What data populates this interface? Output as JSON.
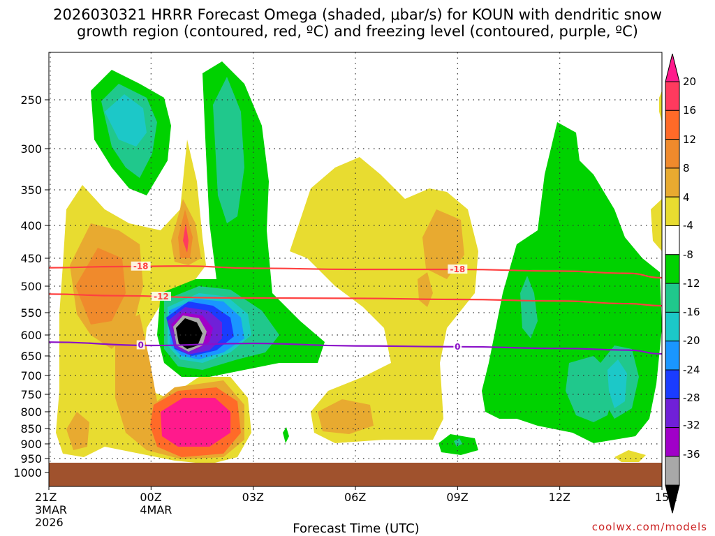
{
  "chart_data": {
    "type": "heatmap",
    "title_line1": "2026030321 HRRR Forecast Omega (shaded, μbar/s) for KOUN with dendritic snow",
    "title_line2": "growth region (contoured, red, ºC) and freezing level (contoured, purple, ºC)",
    "xlabel": "Forecast Time (UTC)",
    "credit": "coolwx.com/models",
    "x_ticks": [
      {
        "hour": 0,
        "label": "21Z",
        "sub1": "3MAR",
        "sub2": "2026"
      },
      {
        "hour": 3,
        "label": "00Z",
        "sub1": "4MAR",
        "sub2": ""
      },
      {
        "hour": 6,
        "label": "03Z",
        "sub1": "",
        "sub2": ""
      },
      {
        "hour": 9,
        "label": "06Z",
        "sub1": "",
        "sub2": ""
      },
      {
        "hour": 12,
        "label": "09Z",
        "sub1": "",
        "sub2": ""
      },
      {
        "hour": 15,
        "label": "12Z",
        "sub1": "",
        "sub2": ""
      },
      {
        "hour": 18,
        "label": "15Z",
        "sub1": "",
        "sub2": ""
      }
    ],
    "y_ticks": [
      "250",
      "300",
      "350",
      "400",
      "450",
      "500",
      "550",
      "600",
      "650",
      "700",
      "750",
      "800",
      "850",
      "900",
      "950",
      "1000"
    ],
    "y_values": [
      250,
      300,
      350,
      400,
      450,
      500,
      550,
      600,
      650,
      700,
      750,
      800,
      850,
      900,
      950,
      1000
    ],
    "ylim": [
      200,
      1030
    ],
    "xlim": [
      0,
      18
    ],
    "colorbar": {
      "labels": [
        "20",
        "16",
        "12",
        "8",
        "4",
        "-4",
        "-8",
        "-12",
        "-16",
        "-20",
        "-24",
        "-28",
        "-32",
        "-36"
      ],
      "colors": [
        "#ff3a5e",
        "#ff6a28",
        "#f08a2c",
        "#e8aa30",
        "#e8dc30",
        "#ffffff",
        "#00d200",
        "#20c88c",
        "#1cc8c8",
        "#1a96ff",
        "#1a3cff",
        "#7020d8",
        "#a000c8",
        "#a8a8a8",
        "#000000"
      ],
      "top_arrow_color": "#ff1a8c"
    },
    "contours": [
      {
        "name": "dgz-minus18",
        "label": "-18",
        "color": "#ff4040",
        "points": [
          [
            0,
            467
          ],
          [
            2,
            465
          ],
          [
            4,
            464
          ],
          [
            6,
            468
          ],
          [
            9,
            470
          ],
          [
            12,
            470
          ],
          [
            15,
            473
          ],
          [
            17,
            477
          ],
          [
            18,
            485
          ]
        ]
      },
      {
        "name": "dgz-minus12",
        "label": "-12",
        "color": "#ff4040",
        "points": [
          [
            0,
            515
          ],
          [
            2,
            518
          ],
          [
            5,
            522
          ],
          [
            9,
            523
          ],
          [
            12,
            525
          ],
          [
            15,
            528
          ],
          [
            17,
            533
          ],
          [
            18,
            537
          ]
        ]
      },
      {
        "name": "freezing-level",
        "label": "0",
        "color": "#8a10c8",
        "points": [
          [
            0,
            617
          ],
          [
            3,
            625
          ],
          [
            6,
            620
          ],
          [
            9,
            626
          ],
          [
            12,
            628
          ],
          [
            15,
            632
          ],
          [
            17,
            636
          ],
          [
            18,
            645
          ]
        ]
      }
    ],
    "terrain_color": "#a0522d",
    "surface_pressure_hpa": 965
  }
}
